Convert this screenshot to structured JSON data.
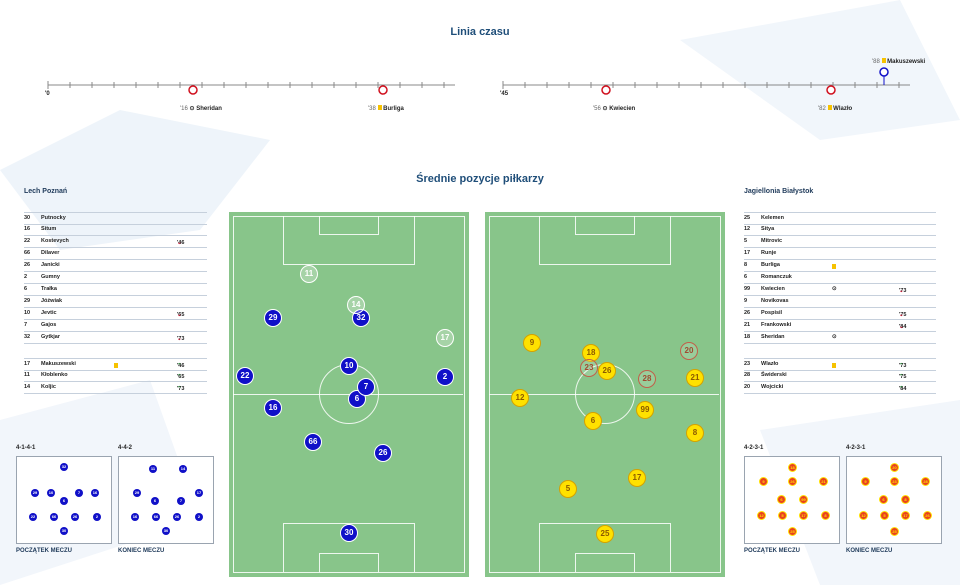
{
  "headings": {
    "timeline": "Linia czasu",
    "positions": "Średnie pozycje piłkarzy"
  },
  "timeline": {
    "first_half_start": "'0",
    "second_half_start": "'45",
    "events": [
      {
        "minute": "'16",
        "player": "Sheridan",
        "icon": "ball-icon"
      },
      {
        "minute": "'38",
        "player": "Burliga",
        "icon": "yellow-card-icon"
      },
      {
        "minute": "'56",
        "player": "Kwiecien",
        "icon": "ball-icon"
      },
      {
        "minute": "'82",
        "player": "Wlazło",
        "icon": "yellow-card-icon"
      },
      {
        "minute": "'88",
        "player": "Makuszewski",
        "icon": "yellow-card-icon"
      }
    ]
  },
  "teams": {
    "home": {
      "name": "Lech Poznań",
      "players": [
        {
          "no": "30",
          "name": "Putnocky",
          "min": "",
          "arrow": ""
        },
        {
          "no": "16",
          "name": "Situm",
          "min": "",
          "arrow": ""
        },
        {
          "no": "22",
          "name": "Kostevych",
          "min": "'46",
          "arrow": "down"
        },
        {
          "no": "66",
          "name": "Dilaver",
          "min": "",
          "arrow": ""
        },
        {
          "no": "26",
          "name": "Janicki",
          "min": "",
          "arrow": ""
        },
        {
          "no": "2",
          "name": "Gumny",
          "min": "",
          "arrow": ""
        },
        {
          "no": "6",
          "name": "Trałka",
          "min": "",
          "arrow": ""
        },
        {
          "no": "29",
          "name": "Jóźwiak",
          "min": "",
          "arrow": ""
        },
        {
          "no": "10",
          "name": "Jevtic",
          "min": "'65",
          "arrow": "down"
        },
        {
          "no": "7",
          "name": "Gajos",
          "min": "",
          "arrow": ""
        },
        {
          "no": "32",
          "name": "Gytkjar",
          "min": "'73",
          "arrow": "down"
        }
      ],
      "subs": [
        {
          "no": "17",
          "name": "Makuszewski",
          "min": "'46",
          "arrow": "up",
          "card": "yellow"
        },
        {
          "no": "11",
          "name": "Kłoblenko",
          "min": "'65",
          "arrow": "up"
        },
        {
          "no": "14",
          "name": "Koljic",
          "min": "'73",
          "arrow": "up"
        }
      ],
      "formations": {
        "start": {
          "label": "4-1-4-1",
          "caption": "POCZĄTEK MECZU"
        },
        "end": {
          "label": "4-4-2",
          "caption": "KONIEC MECZU"
        }
      }
    },
    "away": {
      "name": "Jagiellonia Białystok",
      "players": [
        {
          "no": "25",
          "name": "Kelemen",
          "min": "",
          "arrow": ""
        },
        {
          "no": "12",
          "name": "Sitya",
          "min": "",
          "arrow": ""
        },
        {
          "no": "5",
          "name": "Mitrovic",
          "min": "",
          "arrow": ""
        },
        {
          "no": "17",
          "name": "Runje",
          "min": "",
          "arrow": ""
        },
        {
          "no": "8",
          "name": "Burliga",
          "min": "",
          "arrow": "",
          "card": "yellow"
        },
        {
          "no": "6",
          "name": "Romanczuk",
          "min": "",
          "arrow": ""
        },
        {
          "no": "99",
          "name": "Kwiecien",
          "min": "'73",
          "arrow": "down",
          "goal": true
        },
        {
          "no": "9",
          "name": "Novikovas",
          "min": "",
          "arrow": ""
        },
        {
          "no": "26",
          "name": "Pospisil",
          "min": "'75",
          "arrow": "down"
        },
        {
          "no": "21",
          "name": "Frankowski",
          "min": "'84",
          "arrow": "down"
        },
        {
          "no": "18",
          "name": "Sheridan",
          "min": "",
          "arrow": "",
          "goal": true
        }
      ],
      "subs": [
        {
          "no": "23",
          "name": "Wlazło",
          "min": "'73",
          "arrow": "up",
          "card": "yellow"
        },
        {
          "no": "28",
          "name": "Świderski",
          "min": "'75",
          "arrow": "up"
        },
        {
          "no": "20",
          "name": "Wojcicki",
          "min": "'84",
          "arrow": "up"
        }
      ],
      "formations": {
        "start": {
          "label": "4-2-3-1",
          "caption": "POCZĄTEK MECZU"
        },
        "end": {
          "label": "4-2-3-1",
          "caption": "KONIEC MECZU"
        }
      }
    }
  },
  "colors": {
    "home": "#1010c8",
    "away": "#ffe100",
    "pitch": "#88c58a",
    "heading": "#1f4e79",
    "event_pin": "#d0101e"
  }
}
